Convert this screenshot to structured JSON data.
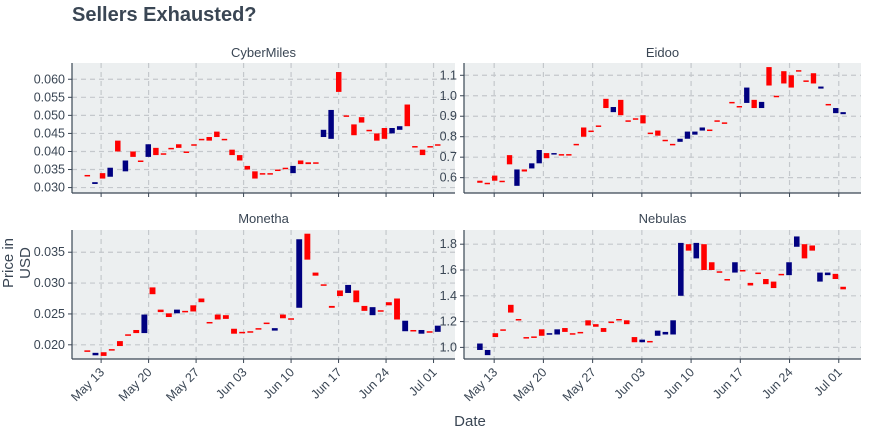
{
  "title": "Sellers Exhausted?",
  "xlabel": "Date",
  "ylabel": "Price in USD",
  "colors": {
    "increasing": "#000080",
    "decreasing": "#ff0000",
    "panel_bg": "#eceff0",
    "grid": "#c4c8cc",
    "axis": "#3a4654"
  },
  "chart_data": [
    {
      "type": "candlestick",
      "title": "CyberMiles",
      "x_ticks": [
        "May 13",
        "May 20",
        "May 27",
        "Jun 03",
        "Jun 10",
        "Jun 17",
        "Jun 24",
        "Jul 01"
      ],
      "y_ticks": [
        "0.030",
        "0.035",
        "0.040",
        "0.045",
        "0.050",
        "0.055",
        "0.060"
      ],
      "ylim": [
        0.0285,
        0.0645
      ],
      "grid": true,
      "candles": [
        {
          "open": 0.0335,
          "close": 0.0335
        },
        {
          "open": 0.031,
          "close": 0.0315
        },
        {
          "open": 0.034,
          "close": 0.0325
        },
        {
          "open": 0.033,
          "close": 0.0355
        },
        {
          "open": 0.043,
          "close": 0.04
        },
        {
          "open": 0.0345,
          "close": 0.0375
        },
        {
          "open": 0.04,
          "close": 0.0385
        },
        {
          "open": 0.0375,
          "close": 0.0375
        },
        {
          "open": 0.0385,
          "close": 0.042
        },
        {
          "open": 0.041,
          "close": 0.039
        },
        {
          "open": 0.0395,
          "close": 0.0395
        },
        {
          "open": 0.041,
          "close": 0.041
        },
        {
          "open": 0.042,
          "close": 0.041
        },
        {
          "open": 0.04,
          "close": 0.04
        },
        {
          "open": 0.042,
          "close": 0.042
        },
        {
          "open": 0.0435,
          "close": 0.0435
        },
        {
          "open": 0.044,
          "close": 0.043
        },
        {
          "open": 0.0455,
          "close": 0.044
        },
        {
          "open": 0.0435,
          "close": 0.0435
        },
        {
          "open": 0.0405,
          "close": 0.039
        },
        {
          "open": 0.039,
          "close": 0.0375
        },
        {
          "open": 0.036,
          "close": 0.035
        },
        {
          "open": 0.0345,
          "close": 0.0325
        },
        {
          "open": 0.034,
          "close": 0.034
        },
        {
          "open": 0.034,
          "close": 0.034
        },
        {
          "open": 0.035,
          "close": 0.035
        },
        {
          "open": 0.0355,
          "close": 0.0355
        },
        {
          "open": 0.034,
          "close": 0.036
        },
        {
          "open": 0.0375,
          "close": 0.0365
        },
        {
          "open": 0.037,
          "close": 0.0365
        },
        {
          "open": 0.037,
          "close": 0.037
        },
        {
          "open": 0.044,
          "close": 0.046
        },
        {
          "open": 0.0435,
          "close": 0.0515
        },
        {
          "open": 0.062,
          "close": 0.0565
        },
        {
          "open": 0.05,
          "close": 0.05
        },
        {
          "open": 0.0475,
          "close": 0.0445
        },
        {
          "open": 0.0495,
          "close": 0.048
        },
        {
          "open": 0.046,
          "close": 0.046
        },
        {
          "open": 0.045,
          "close": 0.043
        },
        {
          "open": 0.0465,
          "close": 0.0435
        },
        {
          "open": 0.045,
          "close": 0.0465
        },
        {
          "open": 0.046,
          "close": 0.047
        },
        {
          "open": 0.053,
          "close": 0.047
        },
        {
          "open": 0.0415,
          "close": 0.0415
        },
        {
          "open": 0.0405,
          "close": 0.039
        },
        {
          "open": 0.0415,
          "close": 0.0415
        },
        {
          "open": 0.042,
          "close": 0.042
        }
      ]
    },
    {
      "type": "candlestick",
      "title": "Eidoo",
      "x_ticks": [
        "May 13",
        "May 20",
        "May 27",
        "Jun 03",
        "Jun 10",
        "Jun 17",
        "Jun 24",
        "Jul 01"
      ],
      "y_ticks": [
        "0.6",
        "0.7",
        "0.8",
        "0.9",
        "1.0",
        "1.1"
      ],
      "ylim": [
        0.525,
        1.16
      ],
      "grid": true,
      "candles": [
        {
          "open": 0.585,
          "close": 0.575
        },
        {
          "open": 0.575,
          "close": 0.575
        },
        {
          "open": 0.61,
          "close": 0.585
        },
        {
          "open": 0.585,
          "close": 0.585
        },
        {
          "open": 0.71,
          "close": 0.665
        },
        {
          "open": 0.56,
          "close": 0.64
        },
        {
          "open": 0.64,
          "close": 0.63
        },
        {
          "open": 0.645,
          "close": 0.67
        },
        {
          "open": 0.67,
          "close": 0.735
        },
        {
          "open": 0.72,
          "close": 0.695
        },
        {
          "open": 0.715,
          "close": 0.72
        },
        {
          "open": 0.715,
          "close": 0.715
        },
        {
          "open": 0.715,
          "close": 0.715
        },
        {
          "open": 0.765,
          "close": 0.765
        },
        {
          "open": 0.845,
          "close": 0.8
        },
        {
          "open": 0.83,
          "close": 0.83
        },
        {
          "open": 0.855,
          "close": 0.855
        },
        {
          "open": 0.985,
          "close": 0.94
        },
        {
          "open": 0.92,
          "close": 0.945
        },
        {
          "open": 0.98,
          "close": 0.905
        },
        {
          "open": 0.88,
          "close": 0.875
        },
        {
          "open": 0.89,
          "close": 0.89
        },
        {
          "open": 0.905,
          "close": 0.865
        },
        {
          "open": 0.82,
          "close": 0.82
        },
        {
          "open": 0.83,
          "close": 0.805
        },
        {
          "open": 0.785,
          "close": 0.785
        },
        {
          "open": 0.765,
          "close": 0.765
        },
        {
          "open": 0.775,
          "close": 0.79
        },
        {
          "open": 0.79,
          "close": 0.825
        },
        {
          "open": 0.81,
          "close": 0.825
        },
        {
          "open": 0.83,
          "close": 0.845
        },
        {
          "open": 0.835,
          "close": 0.835
        },
        {
          "open": 0.88,
          "close": 0.88
        },
        {
          "open": 0.87,
          "close": 0.865
        },
        {
          "open": 0.97,
          "close": 0.97
        },
        {
          "open": 0.95,
          "close": 0.95
        },
        {
          "open": 0.965,
          "close": 1.04
        },
        {
          "open": 0.98,
          "close": 0.94
        },
        {
          "open": 0.94,
          "close": 0.97
        },
        {
          "open": 1.14,
          "close": 1.05
        },
        {
          "open": 1.0,
          "close": 1.0
        },
        {
          "open": 1.12,
          "close": 1.06
        },
        {
          "open": 1.1,
          "close": 1.04
        },
        {
          "open": 1.125,
          "close": 1.12
        },
        {
          "open": 1.075,
          "close": 1.075
        },
        {
          "open": 1.11,
          "close": 1.06
        },
        {
          "open": 1.035,
          "close": 1.045
        },
        {
          "open": 0.96,
          "close": 0.96
        },
        {
          "open": 0.915,
          "close": 0.94
        },
        {
          "open": 0.91,
          "close": 0.92
        }
      ]
    },
    {
      "type": "candlestick",
      "title": "Monetha",
      "x_ticks": [
        "May 13",
        "May 20",
        "May 27",
        "Jun 03",
        "Jun 10",
        "Jun 17",
        "Jun 24",
        "Jul 01"
      ],
      "y_ticks": [
        "0.020",
        "0.025",
        "0.030",
        "0.035"
      ],
      "ylim": [
        0.0177,
        0.0386
      ],
      "grid": true,
      "candles": [
        {
          "open": 0.0191,
          "close": 0.0189
        },
        {
          "open": 0.0183,
          "close": 0.0187
        },
        {
          "open": 0.0188,
          "close": 0.0182
        },
        {
          "open": 0.0193,
          "close": 0.0193
        },
        {
          "open": 0.0206,
          "close": 0.0198
        },
        {
          "open": 0.0217,
          "close": 0.0217
        },
        {
          "open": 0.0224,
          "close": 0.0219
        },
        {
          "open": 0.0219,
          "close": 0.0249
        },
        {
          "open": 0.0293,
          "close": 0.0282
        },
        {
          "open": 0.0257,
          "close": 0.0253
        },
        {
          "open": 0.0251,
          "close": 0.0245
        },
        {
          "open": 0.0251,
          "close": 0.0257
        },
        {
          "open": 0.0255,
          "close": 0.0255
        },
        {
          "open": 0.0264,
          "close": 0.0254
        },
        {
          "open": 0.0275,
          "close": 0.0269
        },
        {
          "open": 0.0237,
          "close": 0.0237
        },
        {
          "open": 0.0249,
          "close": 0.0241
        },
        {
          "open": 0.0248,
          "close": 0.0242
        },
        {
          "open": 0.0226,
          "close": 0.0218
        },
        {
          "open": 0.0221,
          "close": 0.0221
        },
        {
          "open": 0.0222,
          "close": 0.0222
        },
        {
          "open": 0.0227,
          "close": 0.0227
        },
        {
          "open": 0.0236,
          "close": 0.0236
        },
        {
          "open": 0.0223,
          "close": 0.0227
        },
        {
          "open": 0.0249,
          "close": 0.0243
        },
        {
          "open": 0.0243,
          "close": 0.0243
        },
        {
          "open": 0.026,
          "close": 0.0371
        },
        {
          "open": 0.038,
          "close": 0.0338
        },
        {
          "open": 0.0317,
          "close": 0.0312
        },
        {
          "open": 0.0298,
          "close": 0.0298
        },
        {
          "open": 0.0263,
          "close": 0.026
        },
        {
          "open": 0.0288,
          "close": 0.0279
        },
        {
          "open": 0.0284,
          "close": 0.0297
        },
        {
          "open": 0.0288,
          "close": 0.0269
        },
        {
          "open": 0.0263,
          "close": 0.0255
        },
        {
          "open": 0.0248,
          "close": 0.0261
        },
        {
          "open": 0.0256,
          "close": 0.0256
        },
        {
          "open": 0.0269,
          "close": 0.0264
        },
        {
          "open": 0.0275,
          "close": 0.0241
        },
        {
          "open": 0.0222,
          "close": 0.0239
        },
        {
          "open": 0.0224,
          "close": 0.0224
        },
        {
          "open": 0.0218,
          "close": 0.0224
        },
        {
          "open": 0.0222,
          "close": 0.0222
        },
        {
          "open": 0.0221,
          "close": 0.0231
        }
      ]
    },
    {
      "type": "candlestick",
      "title": "Nebulas",
      "x_ticks": [
        "May 13",
        "May 20",
        "May 27",
        "Jun 03",
        "Jun 10",
        "Jun 17",
        "Jun 24",
        "Jul 01"
      ],
      "y_ticks": [
        "1.0",
        "1.2",
        "1.4",
        "1.6",
        "1.8"
      ],
      "ylim": [
        0.91,
        1.91
      ],
      "grid": true,
      "candles": [
        {
          "open": 0.98,
          "close": 1.03
        },
        {
          "open": 0.94,
          "close": 0.98
        },
        {
          "open": 1.11,
          "close": 1.08
        },
        {
          "open": 1.14,
          "close": 1.14
        },
        {
          "open": 1.33,
          "close": 1.27
        },
        {
          "open": 1.22,
          "close": 1.22
        },
        {
          "open": 1.08,
          "close": 1.08
        },
        {
          "open": 1.085,
          "close": 1.085
        },
        {
          "open": 1.14,
          "close": 1.09
        },
        {
          "open": 1.1,
          "close": 1.11
        },
        {
          "open": 1.1,
          "close": 1.14
        },
        {
          "open": 1.15,
          "close": 1.12
        },
        {
          "open": 1.11,
          "close": 1.11
        },
        {
          "open": 1.12,
          "close": 1.12
        },
        {
          "open": 1.21,
          "close": 1.17
        },
        {
          "open": 1.18,
          "close": 1.16
        },
        {
          "open": 1.15,
          "close": 1.12
        },
        {
          "open": 1.2,
          "close": 1.2
        },
        {
          "open": 1.22,
          "close": 1.22
        },
        {
          "open": 1.21,
          "close": 1.18
        },
        {
          "open": 1.08,
          "close": 1.04
        },
        {
          "open": 1.04,
          "close": 1.06
        },
        {
          "open": 1.05,
          "close": 1.05
        },
        {
          "open": 1.09,
          "close": 1.13
        },
        {
          "open": 1.1,
          "close": 1.12
        },
        {
          "open": 1.1,
          "close": 1.21
        },
        {
          "open": 1.4,
          "close": 1.81
        },
        {
          "open": 1.8,
          "close": 1.75
        },
        {
          "open": 1.69,
          "close": 1.81
        },
        {
          "open": 1.8,
          "close": 1.6
        },
        {
          "open": 1.66,
          "close": 1.6
        },
        {
          "open": 1.59,
          "close": 1.59
        },
        {
          "open": 1.53,
          "close": 1.53
        },
        {
          "open": 1.58,
          "close": 1.66
        },
        {
          "open": 1.6,
          "close": 1.6
        },
        {
          "open": 1.5,
          "close": 1.48
        },
        {
          "open": 1.58,
          "close": 1.58
        },
        {
          "open": 1.53,
          "close": 1.49
        },
        {
          "open": 1.51,
          "close": 1.46
        },
        {
          "open": 1.57,
          "close": 1.57
        },
        {
          "open": 1.56,
          "close": 1.66
        },
        {
          "open": 1.78,
          "close": 1.86
        },
        {
          "open": 1.8,
          "close": 1.69
        },
        {
          "open": 1.79,
          "close": 1.75
        },
        {
          "open": 1.51,
          "close": 1.58
        },
        {
          "open": 1.56,
          "close": 1.58
        },
        {
          "open": 1.57,
          "close": 1.53
        },
        {
          "open": 1.47,
          "close": 1.45
        }
      ]
    }
  ]
}
